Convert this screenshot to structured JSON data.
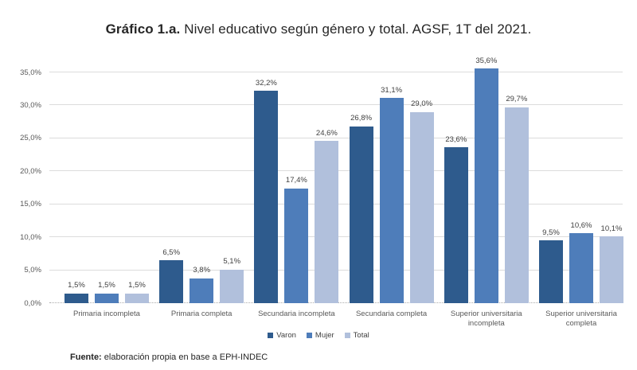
{
  "title": {
    "bold": "Gráfico 1.a.",
    "rest": " Nivel educativo según género y total. AGSF, 1T del 2021."
  },
  "source": {
    "bold": "Fuente:",
    "rest": " elaboración propia en base a EPH-INDEC"
  },
  "chart_data": {
    "type": "bar",
    "title": "Gráfico 1.a. Nivel educativo según género y total. AGSF, 1T del 2021.",
    "categories": [
      "Primaria incompleta",
      "Primaria completa",
      "Secundaria incompleta",
      "Secundaria completa",
      "Superior universitaria incompleta",
      "Superior universitaria completa"
    ],
    "series": [
      {
        "name": "Varon",
        "color": "#2E5B8D",
        "values": [
          1.5,
          6.5,
          32.2,
          26.8,
          23.6,
          9.5
        ],
        "labels": [
          "1,5%",
          "6,5%",
          "32,2%",
          "26,8%",
          "23,6%",
          "9,5%"
        ]
      },
      {
        "name": "Mujer",
        "color": "#4E7DBA",
        "values": [
          1.5,
          3.8,
          17.4,
          31.1,
          35.6,
          10.6
        ],
        "labels": [
          "1,5%",
          "3,8%",
          "17,4%",
          "31,1%",
          "35,6%",
          "10,6%"
        ]
      },
      {
        "name": "Total",
        "color": "#B1C0DC",
        "values": [
          1.5,
          5.1,
          24.6,
          29.0,
          29.7,
          10.1
        ],
        "labels": [
          "1,5%",
          "5,1%",
          "24,6%",
          "29,0%",
          "29,7%",
          "10,1%"
        ]
      }
    ],
    "y_axis": {
      "min": 0,
      "max": 35,
      "step": 5,
      "tick_labels": [
        "0,0%",
        "5,0%",
        "10,0%",
        "15,0%",
        "20,0%",
        "25,0%",
        "30,0%",
        "35,0%"
      ]
    },
    "ylim": [
      0,
      35
    ],
    "grid": true,
    "legend": {
      "position": "bottom",
      "entries": [
        "Varon",
        "Mujer",
        "Total"
      ]
    },
    "xlabel": "",
    "ylabel": ""
  }
}
